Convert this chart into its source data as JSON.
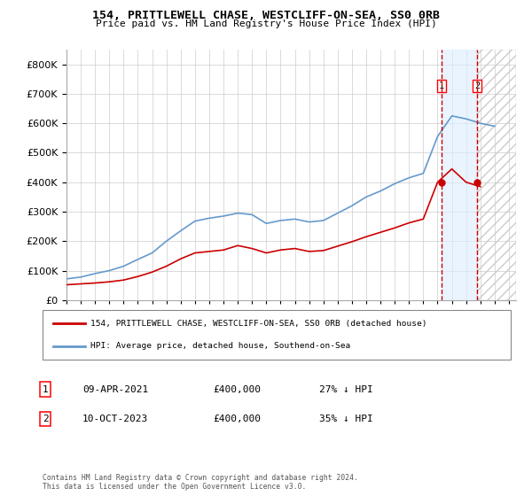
{
  "title": "154, PRITTLEWELL CHASE, WESTCLIFF-ON-SEA, SS0 0RB",
  "subtitle": "Price paid vs. HM Land Registry's House Price Index (HPI)",
  "legend_line1": "154, PRITTLEWELL CHASE, WESTCLIFF-ON-SEA, SS0 0RB (detached house)",
  "legend_line2": "HPI: Average price, detached house, Southend-on-Sea",
  "purchase1_date": "09-APR-2021",
  "purchase1_price": "£400,000",
  "purchase1_hpi": "27% ↓ HPI",
  "purchase1_year": 2021.27,
  "purchase1_value": 400000,
  "purchase2_date": "10-OCT-2023",
  "purchase2_price": "£400,000",
  "purchase2_hpi": "35% ↓ HPI",
  "purchase2_year": 2023.78,
  "purchase2_value": 400000,
  "footer": "Contains HM Land Registry data © Crown copyright and database right 2024.\nThis data is licensed under the Open Government Licence v3.0.",
  "hpi_color": "#6699cc",
  "price_color": "#cc0000",
  "marker_color": "#cc0000",
  "vline_color": "#cc0000",
  "shade_color": "#ddeeff",
  "grid_color": "#cccccc",
  "ylim": [
    0,
    850000
  ],
  "xlim_start": 1995,
  "xlim_end": 2026.5,
  "years": [
    1995,
    1996,
    1997,
    1998,
    1999,
    2000,
    2001,
    2002,
    2003,
    2004,
    2005,
    2006,
    2007,
    2008,
    2009,
    2010,
    2011,
    2012,
    2013,
    2014,
    2015,
    2016,
    2017,
    2018,
    2019,
    2020,
    2021,
    2022,
    2023,
    2024,
    2025
  ],
  "hpi_values": [
    72000,
    78000,
    90000,
    100000,
    115000,
    138000,
    160000,
    200000,
    235000,
    268000,
    278000,
    285000,
    295000,
    290000,
    260000,
    270000,
    275000,
    265000,
    270000,
    295000,
    320000,
    350000,
    370000,
    395000,
    415000,
    430000,
    555000,
    625000,
    615000,
    600000,
    590000
  ],
  "price_values_x": [
    1995,
    1996,
    1997,
    1998,
    1999,
    2000,
    2001,
    2002,
    2003,
    2004,
    2005,
    2006,
    2007,
    2008,
    2009,
    2010,
    2011,
    2012,
    2013,
    2014,
    2015,
    2016,
    2017,
    2018,
    2019,
    2020,
    2021,
    2022,
    2023,
    2024
  ],
  "price_values_y": [
    52000,
    55000,
    58000,
    62000,
    68000,
    80000,
    95000,
    115000,
    140000,
    160000,
    165000,
    170000,
    185000,
    175000,
    160000,
    170000,
    175000,
    165000,
    168000,
    183000,
    198000,
    215000,
    230000,
    245000,
    262000,
    275000,
    400000,
    445000,
    400000,
    385000
  ]
}
